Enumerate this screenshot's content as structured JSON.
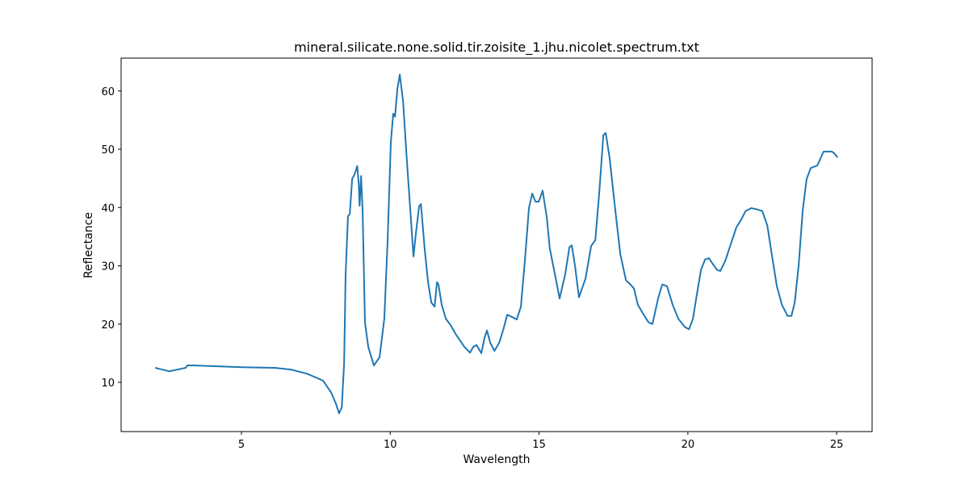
{
  "chart_data": {
    "type": "line",
    "title": "mineral.silicate.none.solid.tir.zoisite_1.jhu.nicolet.spectrum.txt",
    "xlabel": "Wavelength",
    "ylabel": "Reflectance",
    "color": "#1f77b4",
    "grid": false,
    "xlim": [
      0.957,
      26.19
    ],
    "ylim": [
      1.56,
      65.64
    ],
    "xticks": [
      5,
      10,
      15,
      20,
      25
    ],
    "yticks": [
      10,
      20,
      30,
      40,
      50,
      60
    ],
    "x": [
      2.1,
      2.58,
      3.13,
      3.18,
      3.4,
      3.94,
      5.03,
      6.12,
      6.66,
      7.2,
      7.74,
      8.01,
      8.17,
      8.28,
      8.37,
      8.45,
      8.5,
      8.58,
      8.64,
      8.72,
      8.8,
      8.89,
      8.94,
      8.97,
      9.02,
      9.07,
      9.15,
      9.26,
      9.45,
      9.64,
      9.8,
      9.91,
      10.02,
      10.1,
      10.16,
      10.24,
      10.32,
      10.43,
      10.56,
      10.7,
      10.78,
      10.86,
      10.97,
      11.03,
      11.16,
      11.27,
      11.38,
      11.49,
      11.57,
      11.62,
      11.73,
      11.87,
      12.03,
      12.22,
      12.49,
      12.68,
      12.79,
      12.9,
      13.06,
      13.17,
      13.25,
      13.36,
      13.5,
      13.66,
      13.79,
      13.93,
      14.06,
      14.25,
      14.39,
      14.53,
      14.66,
      14.77,
      14.88,
      14.99,
      15.12,
      15.26,
      15.36,
      15.53,
      15.69,
      15.88,
      16.02,
      16.1,
      16.21,
      16.34,
      16.56,
      16.75,
      16.89,
      17.02,
      17.16,
      17.24,
      17.37,
      17.56,
      17.73,
      17.92,
      18.05,
      18.19,
      18.32,
      18.54,
      18.68,
      18.81,
      19.0,
      19.14,
      19.3,
      19.49,
      19.68,
      19.9,
      20.04,
      20.17,
      20.28,
      20.44,
      20.58,
      20.71,
      20.85,
      20.98,
      21.09,
      21.26,
      21.44,
      21.63,
      21.8,
      21.94,
      22.13,
      22.31,
      22.5,
      22.67,
      22.83,
      22.99,
      23.16,
      23.35,
      23.48,
      23.59,
      23.72,
      23.86,
      23.99,
      24.13,
      24.35,
      24.56,
      24.84,
      24.92,
      25.03
    ],
    "values": [
      12.5,
      11.9,
      12.5,
      12.9,
      12.9,
      12.8,
      12.6,
      12.5,
      12.2,
      11.5,
      10.3,
      8.3,
      6.4,
      4.7,
      5.7,
      13.3,
      28.5,
      38.5,
      38.9,
      44.9,
      45.7,
      47.1,
      44.1,
      40.3,
      45.4,
      39.6,
      20.3,
      16.1,
      12.9,
      14.3,
      20.9,
      34.1,
      51.3,
      56.1,
      55.6,
      60.4,
      62.8,
      58.3,
      47.9,
      37.6,
      31.6,
      35.5,
      40.2,
      40.6,
      32.7,
      27.2,
      23.7,
      23.0,
      27.2,
      26.8,
      23.3,
      20.9,
      19.8,
      18.1,
      16.1,
      15.1,
      16.1,
      16.4,
      15.0,
      17.7,
      18.9,
      16.8,
      15.4,
      16.8,
      18.9,
      21.6,
      21.3,
      20.8,
      23.0,
      31.3,
      39.9,
      42.4,
      41.0,
      41.0,
      42.9,
      38.3,
      33.0,
      28.6,
      24.4,
      28.6,
      33.2,
      33.5,
      29.9,
      24.6,
      27.8,
      33.4,
      34.4,
      42.4,
      52.4,
      52.8,
      48.5,
      39.6,
      32.0,
      27.5,
      26.9,
      26.1,
      23.3,
      21.4,
      20.3,
      20.0,
      24.4,
      26.8,
      26.5,
      23.3,
      20.9,
      19.5,
      19.1,
      20.9,
      24.4,
      29.3,
      31.1,
      31.3,
      30.2,
      29.3,
      29.1,
      30.9,
      33.7,
      36.6,
      38.0,
      39.4,
      39.9,
      39.7,
      39.4,
      36.9,
      31.6,
      26.5,
      23.3,
      21.4,
      21.4,
      23.7,
      29.9,
      39.6,
      44.9,
      46.8,
      47.2,
      49.6,
      49.6,
      49.3,
      48.6
    ]
  }
}
